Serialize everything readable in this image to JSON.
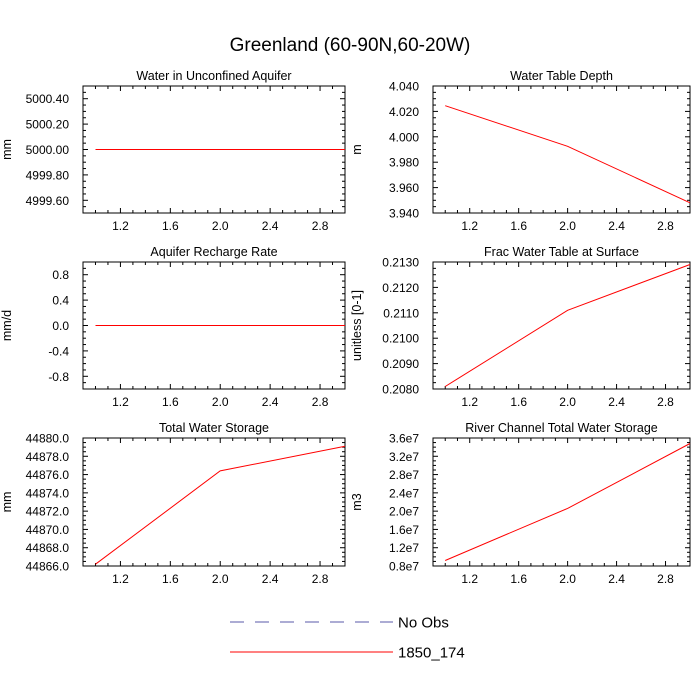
{
  "figure": {
    "title": "Greenland (60-90N,60-20W)",
    "legend": [
      {
        "label": "No Obs",
        "color": "#5a5aa8",
        "dash": true
      },
      {
        "label": "1850_174",
        "color": "#ff0000",
        "dash": false
      }
    ]
  },
  "chart_data": [
    {
      "type": "line",
      "title": "Water in Unconfined Aquifer",
      "ylabel": "mm",
      "xlim": [
        0.9,
        3.0
      ],
      "ylim": [
        4999.5,
        5000.5
      ],
      "xticks": [
        1.2,
        1.6,
        2.0,
        2.4,
        2.8
      ],
      "xtick_labels": [
        "1.2",
        "1.6",
        "2.0",
        "2.4",
        "2.8"
      ],
      "yticks": [
        4999.6,
        4999.8,
        5000.0,
        5000.2,
        5000.4
      ],
      "ytick_labels": [
        "4999.60",
        "4999.80",
        "5000.00",
        "5000.20",
        "5000.40"
      ],
      "series": [
        {
          "name": "1850_174",
          "color": "#ff0000",
          "x": [
            1.0,
            2.0,
            3.0
          ],
          "y": [
            5000.0,
            5000.0,
            5000.0
          ]
        }
      ]
    },
    {
      "type": "line",
      "title": "Water Table Depth",
      "ylabel": "m",
      "xlim": [
        0.9,
        3.0
      ],
      "ylim": [
        3.94,
        4.04
      ],
      "xticks": [
        1.2,
        1.6,
        2.0,
        2.4,
        2.8
      ],
      "xtick_labels": [
        "1.2",
        "1.6",
        "2.0",
        "2.4",
        "2.8"
      ],
      "yticks": [
        3.94,
        3.96,
        3.98,
        4.0,
        4.02,
        4.04
      ],
      "ytick_labels": [
        "3.940",
        "3.960",
        "3.980",
        "4.000",
        "4.020",
        "4.040"
      ],
      "series": [
        {
          "name": "1850_174",
          "color": "#ff0000",
          "x": [
            1.0,
            2.0,
            3.0
          ],
          "y": [
            4.0245,
            3.9925,
            3.948
          ]
        }
      ]
    },
    {
      "type": "line",
      "title": "Aquifer Recharge Rate",
      "ylabel": "mm/d",
      "xlim": [
        0.9,
        3.0
      ],
      "ylim": [
        -1.0,
        1.0
      ],
      "xticks": [
        1.2,
        1.6,
        2.0,
        2.4,
        2.8
      ],
      "xtick_labels": [
        "1.2",
        "1.6",
        "2.0",
        "2.4",
        "2.8"
      ],
      "yticks": [
        -0.8,
        -0.4,
        0.0,
        0.4,
        0.8
      ],
      "ytick_labels": [
        "-0.8",
        "-0.4",
        "0.0",
        "0.4",
        "0.8"
      ],
      "series": [
        {
          "name": "1850_174",
          "color": "#ff0000",
          "x": [
            1.0,
            2.0,
            3.0
          ],
          "y": [
            0.0,
            0.0,
            0.0
          ]
        }
      ]
    },
    {
      "type": "line",
      "title": "Frac Water Table at Surface",
      "ylabel": "unitless [0-1]",
      "xlim": [
        0.9,
        3.0
      ],
      "ylim": [
        0.208,
        0.213
      ],
      "xticks": [
        1.2,
        1.6,
        2.0,
        2.4,
        2.8
      ],
      "xtick_labels": [
        "1.2",
        "1.6",
        "2.0",
        "2.4",
        "2.8"
      ],
      "yticks": [
        0.208,
        0.209,
        0.21,
        0.211,
        0.212,
        0.213
      ],
      "ytick_labels": [
        "0.2080",
        "0.2090",
        "0.2100",
        "0.2110",
        "0.2120",
        "0.2130"
      ],
      "series": [
        {
          "name": "1850_174",
          "color": "#ff0000",
          "x": [
            1.0,
            2.0,
            3.0
          ],
          "y": [
            0.2081,
            0.2111,
            0.2129
          ]
        }
      ]
    },
    {
      "type": "line",
      "title": "Total Water Storage",
      "ylabel": "mm",
      "xlim": [
        0.9,
        3.0
      ],
      "ylim": [
        44866.0,
        44880.0
      ],
      "xticks": [
        1.2,
        1.6,
        2.0,
        2.4,
        2.8
      ],
      "xtick_labels": [
        "1.2",
        "1.6",
        "2.0",
        "2.4",
        "2.8"
      ],
      "yticks": [
        44866,
        44868,
        44870,
        44872,
        44874,
        44876,
        44878,
        44880
      ],
      "ytick_labels": [
        "44866.0",
        "44868.0",
        "44870.0",
        "44872.0",
        "44874.0",
        "44876.0",
        "44878.0",
        "44880.0"
      ],
      "series": [
        {
          "name": "1850_174",
          "color": "#ff0000",
          "x": [
            1.0,
            2.0,
            3.0
          ],
          "y": [
            44866.2,
            44876.4,
            44879.1
          ]
        }
      ]
    },
    {
      "type": "line",
      "title": "River Channel Total Water Storage",
      "ylabel": "m3",
      "xlim": [
        0.9,
        3.0
      ],
      "ylim": [
        8000000,
        36000000
      ],
      "xticks": [
        1.2,
        1.6,
        2.0,
        2.4,
        2.8
      ],
      "xtick_labels": [
        "1.2",
        "1.6",
        "2.0",
        "2.4",
        "2.8"
      ],
      "yticks": [
        8000000,
        12000000,
        16000000,
        20000000,
        24000000,
        28000000,
        32000000,
        36000000
      ],
      "ytick_labels": [
        "0.8e7",
        "1.2e7",
        "1.6e7",
        "2.0e7",
        "2.4e7",
        "2.8e7",
        "3.2e7",
        "3.6e7"
      ],
      "series": [
        {
          "name": "1850_174",
          "color": "#ff0000",
          "x": [
            1.0,
            2.0,
            3.0
          ],
          "y": [
            9200000,
            20600000,
            34800000
          ]
        }
      ]
    }
  ]
}
